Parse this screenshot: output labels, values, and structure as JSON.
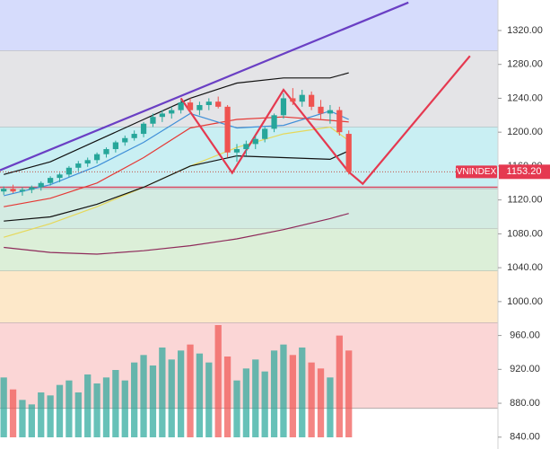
{
  "chart_data": {
    "type": "candlestick",
    "symbol": "VNINDEX",
    "last": {
      "value": 1153.2,
      "label": "1153.20"
    },
    "ylim": [
      826,
      1356
    ],
    "xlim": [
      -0.4,
      53
    ],
    "yticks": [
      {
        "value": 840,
        "label": "840.00"
      },
      {
        "value": 880,
        "label": "880.00"
      },
      {
        "value": 920,
        "label": "920.00"
      },
      {
        "value": 960,
        "label": "960.00"
      },
      {
        "value": 1000,
        "label": "1000.00"
      },
      {
        "value": 1040,
        "label": "1040.00"
      },
      {
        "value": 1080,
        "label": "1080.00"
      },
      {
        "value": 1120,
        "label": "1120.00"
      },
      {
        "value": 1160,
        "label": "1160.00"
      },
      {
        "value": 1200,
        "label": "1200.00"
      },
      {
        "value": 1240,
        "label": "1240.00"
      },
      {
        "value": 1280,
        "label": "1280.00"
      },
      {
        "value": 1320,
        "label": "1320.00"
      }
    ],
    "up_color": "#26a69a",
    "down_color": "#ef5350",
    "candles": [
      [
        1130,
        1136,
        1126,
        1133
      ],
      [
        1133,
        1138,
        1128,
        1130
      ],
      [
        1130,
        1135,
        1125,
        1132
      ],
      [
        1132,
        1137,
        1128,
        1135
      ],
      [
        1135,
        1142,
        1131,
        1140
      ],
      [
        1140,
        1148,
        1137,
        1146
      ],
      [
        1146,
        1152,
        1141,
        1150
      ],
      [
        1150,
        1160,
        1147,
        1158
      ],
      [
        1158,
        1166,
        1154,
        1163
      ],
      [
        1163,
        1170,
        1159,
        1167
      ],
      [
        1167,
        1176,
        1163,
        1174
      ],
      [
        1174,
        1182,
        1170,
        1180
      ],
      [
        1180,
        1190,
        1176,
        1188
      ],
      [
        1188,
        1196,
        1184,
        1193
      ],
      [
        1193,
        1202,
        1190,
        1198
      ],
      [
        1198,
        1212,
        1194,
        1210
      ],
      [
        1210,
        1222,
        1206,
        1218
      ],
      [
        1218,
        1226,
        1212,
        1222
      ],
      [
        1222,
        1230,
        1216,
        1226
      ],
      [
        1226,
        1238,
        1222,
        1235
      ],
      [
        1235,
        1240,
        1222,
        1226
      ],
      [
        1226,
        1236,
        1220,
        1232
      ],
      [
        1232,
        1240,
        1226,
        1236
      ],
      [
        1236,
        1242,
        1228,
        1230
      ],
      [
        1230,
        1232,
        1170,
        1176
      ],
      [
        1176,
        1186,
        1165,
        1180
      ],
      [
        1180,
        1190,
        1172,
        1186
      ],
      [
        1186,
        1196,
        1180,
        1192
      ],
      [
        1192,
        1206,
        1188,
        1204
      ],
      [
        1204,
        1222,
        1200,
        1220
      ],
      [
        1220,
        1246,
        1216,
        1240
      ],
      [
        1240,
        1252,
        1232,
        1236
      ],
      [
        1236,
        1250,
        1230,
        1244
      ],
      [
        1244,
        1248,
        1226,
        1230
      ],
      [
        1230,
        1238,
        1214,
        1222
      ],
      [
        1222,
        1232,
        1210,
        1226
      ],
      [
        1226,
        1230,
        1196,
        1200
      ],
      [
        1198,
        1202,
        1150,
        1153.2
      ]
    ],
    "volume": [
      40,
      32,
      25,
      22,
      30,
      28,
      35,
      38,
      30,
      42,
      36,
      40,
      45,
      38,
      50,
      55,
      48,
      60,
      52,
      58,
      62,
      56,
      50,
      75,
      54,
      38,
      46,
      52,
      44,
      58,
      62,
      55,
      60,
      50,
      46,
      40,
      68,
      58
    ],
    "volume_lim": [
      0,
      300
    ],
    "zones": [
      {
        "from": 1296,
        "to": 1356,
        "color": "#d6dcfc"
      },
      {
        "from": 1206,
        "to": 1296,
        "color": "#e4e4e7"
      },
      {
        "from": 1133,
        "to": 1206,
        "color": "#c9eff3"
      },
      {
        "from": 1086,
        "to": 1133,
        "color": "#d3ebe2"
      },
      {
        "from": 1036,
        "to": 1086,
        "color": "#dcefd8"
      },
      {
        "from": 975,
        "to": 1036,
        "color": "#fde8c9"
      },
      {
        "from": 874,
        "to": 975,
        "color": "#fbd6d6"
      }
    ],
    "levels": [
      {
        "value": 1135,
        "color": "#d9485f"
      }
    ],
    "lines": [
      {
        "color": "#e53935",
        "x": [
          0,
          5,
          10,
          15,
          20,
          25,
          30,
          35,
          37
        ],
        "values": [
          1112,
          1122,
          1140,
          1170,
          1205,
          1215,
          1218,
          1214,
          1212
        ]
      },
      {
        "color": "#e6d85a",
        "x": [
          0,
          5,
          10,
          15,
          20,
          25,
          30,
          35,
          37
        ],
        "values": [
          1076,
          1092,
          1112,
          1135,
          1160,
          1182,
          1198,
          1206,
          1190
        ]
      },
      {
        "color": "#3f8fd8",
        "x": [
          0,
          5,
          10,
          15,
          20,
          25,
          30,
          35,
          37
        ],
        "values": [
          1125,
          1138,
          1160,
          1188,
          1222,
          1205,
          1208,
          1225,
          1215
        ]
      },
      {
        "color": "#111111",
        "x": [
          0,
          5,
          10,
          15,
          20,
          25,
          30,
          35,
          37
        ],
        "values": [
          1150,
          1165,
          1190,
          1215,
          1240,
          1258,
          1264,
          1264,
          1270
        ]
      },
      {
        "color": "#111111",
        "x": [
          0,
          5,
          10,
          15,
          20,
          25,
          30,
          35,
          37
        ],
        "values": [
          1095,
          1100,
          1115,
          1135,
          1160,
          1172,
          1170,
          1168,
          1178
        ]
      },
      {
        "color": "#8e2a5a",
        "x": [
          0,
          5,
          10,
          15,
          20,
          25,
          30,
          35,
          37
        ],
        "values": [
          1064,
          1058,
          1056,
          1060,
          1066,
          1074,
          1085,
          1098,
          1104
        ]
      },
      {
        "color": "#6a3fc4",
        "x": [
          -0.4,
          43.4
        ],
        "values": [
          1155,
          1353
        ]
      },
      {
        "color": "#e53950",
        "x": [
          19,
          24.5,
          30,
          37,
          38.5,
          50
        ],
        "values": [
          1240,
          1152,
          1250,
          1153,
          1139,
          1290
        ]
      }
    ]
  }
}
